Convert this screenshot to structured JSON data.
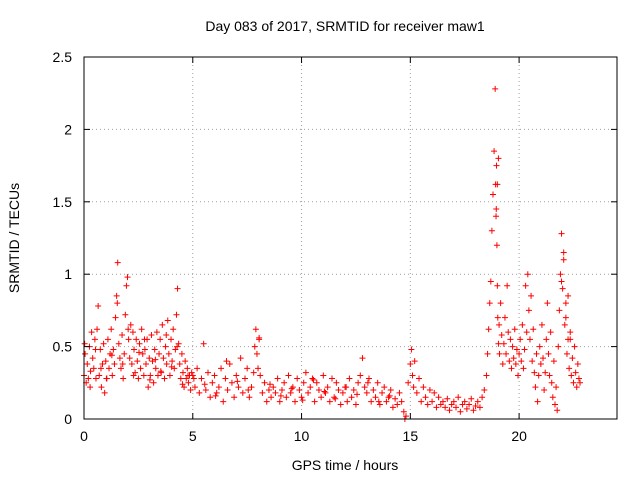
{
  "chart_data": {
    "type": "scatter",
    "title": "Day 083 of 2017, SRMTID for receiver maw1",
    "xlabel": "GPS time / hours",
    "ylabel": "SRMTID / TECUs",
    "xlim": [
      0,
      24.5
    ],
    "ylim": [
      0,
      2.5
    ],
    "x_ticks": [
      0,
      5,
      10,
      15,
      20
    ],
    "x_tick_labels": [
      "0",
      "5",
      "10",
      "15",
      "20"
    ],
    "y_ticks": [
      0,
      0.5,
      1,
      1.5,
      2,
      2.5
    ],
    "y_tick_labels": [
      "0",
      "0.5",
      "1",
      "1.5",
      "2",
      "2.5"
    ],
    "grid": true,
    "legend": "none",
    "marker": "plus",
    "marker_color": "#ff0000",
    "series": [
      {
        "name": "SRMTID",
        "x": [
          0.0,
          0.05,
          0.1,
          0.15,
          0.2,
          0.25,
          0.3,
          0.35,
          0.4,
          0.45,
          0.5,
          0.55,
          0.6,
          0.65,
          0.7,
          0.75,
          0.8,
          0.85,
          0.9,
          0.95,
          1.0,
          1.05,
          1.1,
          1.15,
          1.2,
          1.25,
          1.3,
          1.35,
          1.4,
          1.45,
          1.5,
          1.55,
          1.6,
          1.65,
          1.7,
          1.75,
          1.8,
          1.85,
          1.9,
          1.95,
          2.0,
          2.05,
          2.1,
          2.15,
          2.2,
          2.25,
          2.3,
          2.35,
          2.4,
          2.45,
          2.5,
          2.55,
          2.6,
          2.65,
          2.7,
          2.75,
          2.8,
          2.85,
          2.9,
          2.95,
          3.0,
          3.05,
          3.1,
          3.15,
          3.2,
          3.25,
          3.3,
          3.35,
          3.4,
          3.45,
          3.5,
          3.55,
          3.6,
          3.65,
          3.7,
          3.75,
          3.8,
          3.85,
          3.9,
          3.95,
          4.0,
          4.05,
          4.1,
          4.15,
          4.2,
          4.25,
          4.3,
          4.35,
          4.4,
          4.45,
          4.5,
          4.55,
          4.6,
          4.65,
          4.7,
          4.75,
          4.8,
          4.85,
          4.9,
          4.95,
          0.03,
          0.28,
          0.53,
          0.78,
          1.03,
          1.28,
          1.53,
          1.78,
          2.03,
          2.28,
          2.53,
          2.78,
          3.03,
          3.28,
          3.53,
          3.78,
          4.03,
          4.28,
          4.53,
          4.78,
          5.0,
          5.1,
          5.2,
          5.3,
          5.4,
          5.5,
          5.6,
          5.7,
          5.8,
          5.9,
          6.0,
          6.1,
          6.2,
          6.3,
          6.4,
          6.5,
          6.6,
          6.7,
          6.8,
          6.9,
          7.0,
          7.1,
          7.2,
          7.3,
          7.4,
          7.5,
          7.6,
          7.7,
          7.8,
          7.85,
          7.9,
          7.95,
          8.0,
          8.05,
          8.1,
          8.2,
          8.3,
          8.4,
          8.5,
          8.6,
          8.7,
          8.8,
          8.9,
          9.0,
          9.1,
          9.2,
          9.3,
          9.4,
          9.5,
          9.6,
          9.7,
          9.8,
          9.9,
          10.0,
          10.1,
          10.2,
          10.3,
          10.4,
          10.5,
          10.6,
          10.7,
          10.8,
          10.9,
          11.0,
          11.1,
          11.2,
          11.3,
          11.4,
          11.5,
          11.6,
          11.7,
          11.8,
          11.9,
          12.0,
          12.1,
          12.2,
          12.3,
          12.4,
          12.5,
          12.6,
          12.7,
          12.8,
          12.9,
          13.0,
          13.1,
          13.2,
          13.3,
          13.4,
          13.5,
          13.6,
          13.7,
          13.8,
          13.9,
          14.0,
          14.1,
          14.2,
          14.3,
          14.4,
          14.5,
          14.6,
          14.7,
          14.8,
          14.9,
          15.0,
          15.05,
          15.1,
          15.15,
          15.2,
          15.3,
          15.4,
          15.5,
          15.6,
          15.7,
          15.8,
          15.9,
          16.0,
          16.1,
          16.2,
          16.3,
          16.4,
          16.5,
          16.6,
          16.7,
          16.8,
          16.9,
          17.0,
          17.1,
          17.2,
          17.3,
          17.4,
          17.5,
          17.6,
          17.7,
          17.8,
          17.9,
          18.0,
          18.1,
          18.2,
          18.3,
          18.4,
          5.05,
          5.55,
          6.05,
          6.55,
          7.05,
          7.55,
          8.05,
          8.55,
          9.05,
          9.55,
          10.05,
          10.55,
          11.05,
          11.55,
          12.05,
          12.55,
          13.05,
          13.55,
          14.05,
          14.75,
          18.5,
          18.55,
          18.6,
          18.65,
          18.7,
          18.75,
          18.8,
          18.85,
          18.9,
          18.92,
          18.94,
          18.96,
          18.98,
          19.0,
          19.02,
          19.05,
          19.08,
          19.1,
          19.15,
          19.2,
          19.25,
          19.3,
          19.35,
          19.4,
          19.45,
          19.5,
          19.55,
          19.6,
          19.65,
          19.7,
          19.75,
          19.8,
          19.85,
          19.9,
          19.95,
          20.0,
          20.05,
          20.1,
          20.15,
          20.2,
          20.25,
          20.3,
          20.35,
          20.4,
          20.45,
          20.5,
          20.55,
          20.6,
          20.65,
          20.7,
          20.75,
          20.8,
          20.85,
          20.9,
          20.95,
          21.0,
          21.05,
          21.1,
          21.15,
          21.2,
          21.25,
          21.3,
          21.35,
          21.4,
          21.45,
          21.5,
          21.55,
          21.6,
          21.65,
          21.7,
          21.75,
          21.8,
          21.85,
          21.9,
          21.95,
          22.0,
          22.05,
          22.1,
          22.15,
          22.2,
          22.25,
          22.3,
          22.35,
          22.4,
          22.45,
          22.5,
          22.55,
          22.6,
          22.65,
          22.7,
          22.75,
          22.8,
          18.95,
          19.0,
          19.05,
          21.95,
          22.05,
          22.15,
          22.25,
          22.35
        ],
        "y": [
          0.3,
          0.45,
          0.25,
          0.38,
          0.28,
          0.5,
          0.33,
          0.6,
          0.42,
          0.35,
          0.55,
          0.28,
          0.62,
          0.78,
          0.3,
          0.48,
          0.22,
          0.38,
          0.52,
          0.18,
          0.4,
          0.28,
          0.55,
          0.35,
          0.45,
          0.62,
          0.3,
          0.48,
          0.38,
          0.7,
          0.85,
          1.08,
          0.52,
          0.42,
          0.35,
          0.58,
          0.28,
          0.45,
          0.72,
          0.92,
          0.98,
          0.55,
          0.42,
          0.65,
          0.38,
          0.6,
          0.48,
          0.32,
          0.55,
          0.4,
          0.28,
          0.52,
          0.35,
          0.62,
          0.45,
          0.3,
          0.48,
          0.38,
          0.55,
          0.22,
          0.42,
          0.3,
          0.58,
          0.4,
          0.25,
          0.48,
          0.35,
          0.6,
          0.3,
          0.45,
          0.55,
          0.32,
          0.65,
          0.42,
          0.28,
          0.5,
          0.38,
          0.68,
          0.45,
          0.3,
          0.55,
          0.4,
          0.62,
          0.35,
          0.48,
          0.72,
          0.9,
          0.52,
          0.38,
          0.28,
          0.45,
          0.32,
          0.22,
          0.4,
          0.28,
          0.35,
          0.25,
          0.3,
          0.2,
          0.32,
          0.52,
          0.22,
          0.48,
          0.35,
          0.28,
          0.44,
          0.8,
          0.38,
          0.62,
          0.3,
          0.46,
          0.55,
          0.27,
          0.41,
          0.33,
          0.58,
          0.36,
          0.5,
          0.24,
          0.3,
          0.3,
          0.22,
          0.35,
          0.18,
          0.28,
          0.52,
          0.2,
          0.32,
          0.15,
          0.25,
          0.3,
          0.18,
          0.22,
          0.35,
          0.12,
          0.28,
          0.2,
          0.38,
          0.25,
          0.15,
          0.3,
          0.22,
          0.42,
          0.18,
          0.28,
          0.35,
          0.15,
          0.22,
          0.32,
          0.5,
          0.62,
          0.45,
          0.35,
          0.55,
          0.3,
          0.18,
          0.25,
          0.12,
          0.2,
          0.15,
          0.22,
          0.18,
          0.28,
          0.12,
          0.2,
          0.25,
          0.15,
          0.3,
          0.18,
          0.22,
          0.12,
          0.28,
          0.2,
          0.15,
          0.25,
          0.32,
          0.18,
          0.22,
          0.28,
          0.12,
          0.25,
          0.2,
          0.15,
          0.3,
          0.18,
          0.22,
          0.12,
          0.28,
          0.15,
          0.25,
          0.2,
          0.1,
          0.18,
          0.22,
          0.12,
          0.28,
          0.15,
          0.2,
          0.1,
          0.25,
          0.3,
          0.42,
          0.22,
          0.18,
          0.28,
          0.12,
          0.2,
          0.15,
          0.25,
          0.1,
          0.18,
          0.22,
          0.12,
          0.15,
          0.2,
          0.08,
          0.14,
          0.1,
          0.18,
          0.12,
          0.05,
          0.02,
          0.25,
          0.38,
          0.48,
          0.3,
          0.22,
          0.4,
          0.18,
          0.28,
          0.12,
          0.22,
          0.15,
          0.1,
          0.2,
          0.12,
          0.18,
          0.08,
          0.15,
          0.1,
          0.12,
          0.08,
          0.14,
          0.06,
          0.1,
          0.12,
          0.08,
          0.15,
          0.05,
          0.1,
          0.12,
          0.07,
          0.1,
          0.14,
          0.06,
          0.09,
          0.12,
          0.08,
          0.15,
          0.2,
          0.28,
          0.24,
          0.16,
          0.4,
          0.26,
          0.2,
          0.56,
          0.24,
          0.16,
          0.21,
          0.13,
          0.27,
          0.19,
          0.14,
          0.22,
          0.17,
          0.25,
          0.12,
          0.16,
          0.0,
          0.3,
          0.45,
          0.62,
          0.8,
          0.95,
          1.3,
          1.55,
          1.85,
          2.28,
          1.62,
          1.4,
          1.75,
          1.2,
          0.92,
          0.7,
          0.52,
          0.65,
          0.45,
          0.8,
          0.58,
          0.38,
          0.52,
          0.7,
          0.45,
          0.92,
          0.6,
          0.4,
          0.55,
          0.35,
          0.5,
          0.42,
          0.62,
          0.38,
          0.48,
          0.3,
          0.45,
          0.55,
          0.4,
          0.65,
          0.35,
          0.48,
          0.92,
          0.6,
          1.0,
          0.75,
          0.55,
          0.85,
          0.4,
          0.62,
          0.32,
          0.22,
          0.45,
          0.12,
          0.3,
          0.5,
          0.38,
          0.65,
          0.42,
          0.2,
          0.32,
          0.55,
          0.8,
          0.45,
          0.3,
          0.6,
          0.25,
          0.15,
          0.4,
          0.1,
          0.22,
          0.06,
          0.5,
          0.75,
          1.0,
          1.28,
          0.9,
          1.15,
          0.65,
          0.8,
          0.45,
          0.55,
          0.35,
          0.6,
          0.3,
          0.42,
          0.25,
          0.5,
          0.32,
          0.22,
          0.38,
          0.28,
          0.25,
          1.45,
          1.62,
          1.8,
          0.95,
          1.1,
          0.7,
          0.85,
          0.55
        ]
      }
    ]
  }
}
